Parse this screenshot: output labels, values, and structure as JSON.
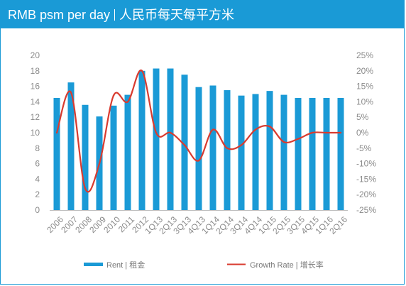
{
  "title": {
    "main": "RMB psm per day",
    "sub": "人民币每天每平方米"
  },
  "colors": {
    "title_bar": "#1a9ad6",
    "bar": "#1a9ad6",
    "line": "#d93b2f",
    "axis_text": "#8a8a8a"
  },
  "legend": {
    "rent": "Rent | 租金",
    "growth": "Growth Rate | 增长率"
  },
  "chart_data": {
    "type": "bar",
    "categories": [
      "2006",
      "2007",
      "2008",
      "2009",
      "2010",
      "2011",
      "2012",
      "1Q13",
      "2Q13",
      "3Q13",
      "4Q13",
      "1Q14",
      "2Q14",
      "3Q14",
      "4Q14",
      "1Q15",
      "2Q15",
      "3Q15",
      "4Q15",
      "1Q16",
      "2Q16"
    ],
    "series": [
      {
        "name": "Rent | 租金",
        "type": "bar",
        "axis": "left",
        "values": [
          14.5,
          16.5,
          13.6,
          12.1,
          13.5,
          14.9,
          18.0,
          18.3,
          18.3,
          17.5,
          15.9,
          16.1,
          15.5,
          14.8,
          15.0,
          15.4,
          14.9,
          14.5,
          14.5,
          14.5,
          14.5
        ]
      },
      {
        "name": "Growth Rate | 增长率",
        "type": "line",
        "axis": "right",
        "values": [
          0,
          13,
          -18,
          -10,
          12,
          10,
          20,
          0,
          0,
          -4,
          -9,
          1,
          -5,
          -4,
          1,
          2,
          -3,
          -2,
          0,
          0,
          0
        ]
      }
    ],
    "y_left": {
      "min": 0,
      "max": 20,
      "ticks": [
        "0",
        "2",
        "4",
        "6",
        "8",
        "10",
        "12",
        "14",
        "16",
        "18",
        "20"
      ]
    },
    "y_right": {
      "min": -25,
      "max": 25,
      "ticks": [
        "-25%",
        "-20%",
        "-15%",
        "-10%",
        "-5%",
        "0%",
        "5%",
        "10%",
        "15%",
        "20%",
        "25%"
      ]
    },
    "grid": false,
    "legend_position": "bottom"
  }
}
